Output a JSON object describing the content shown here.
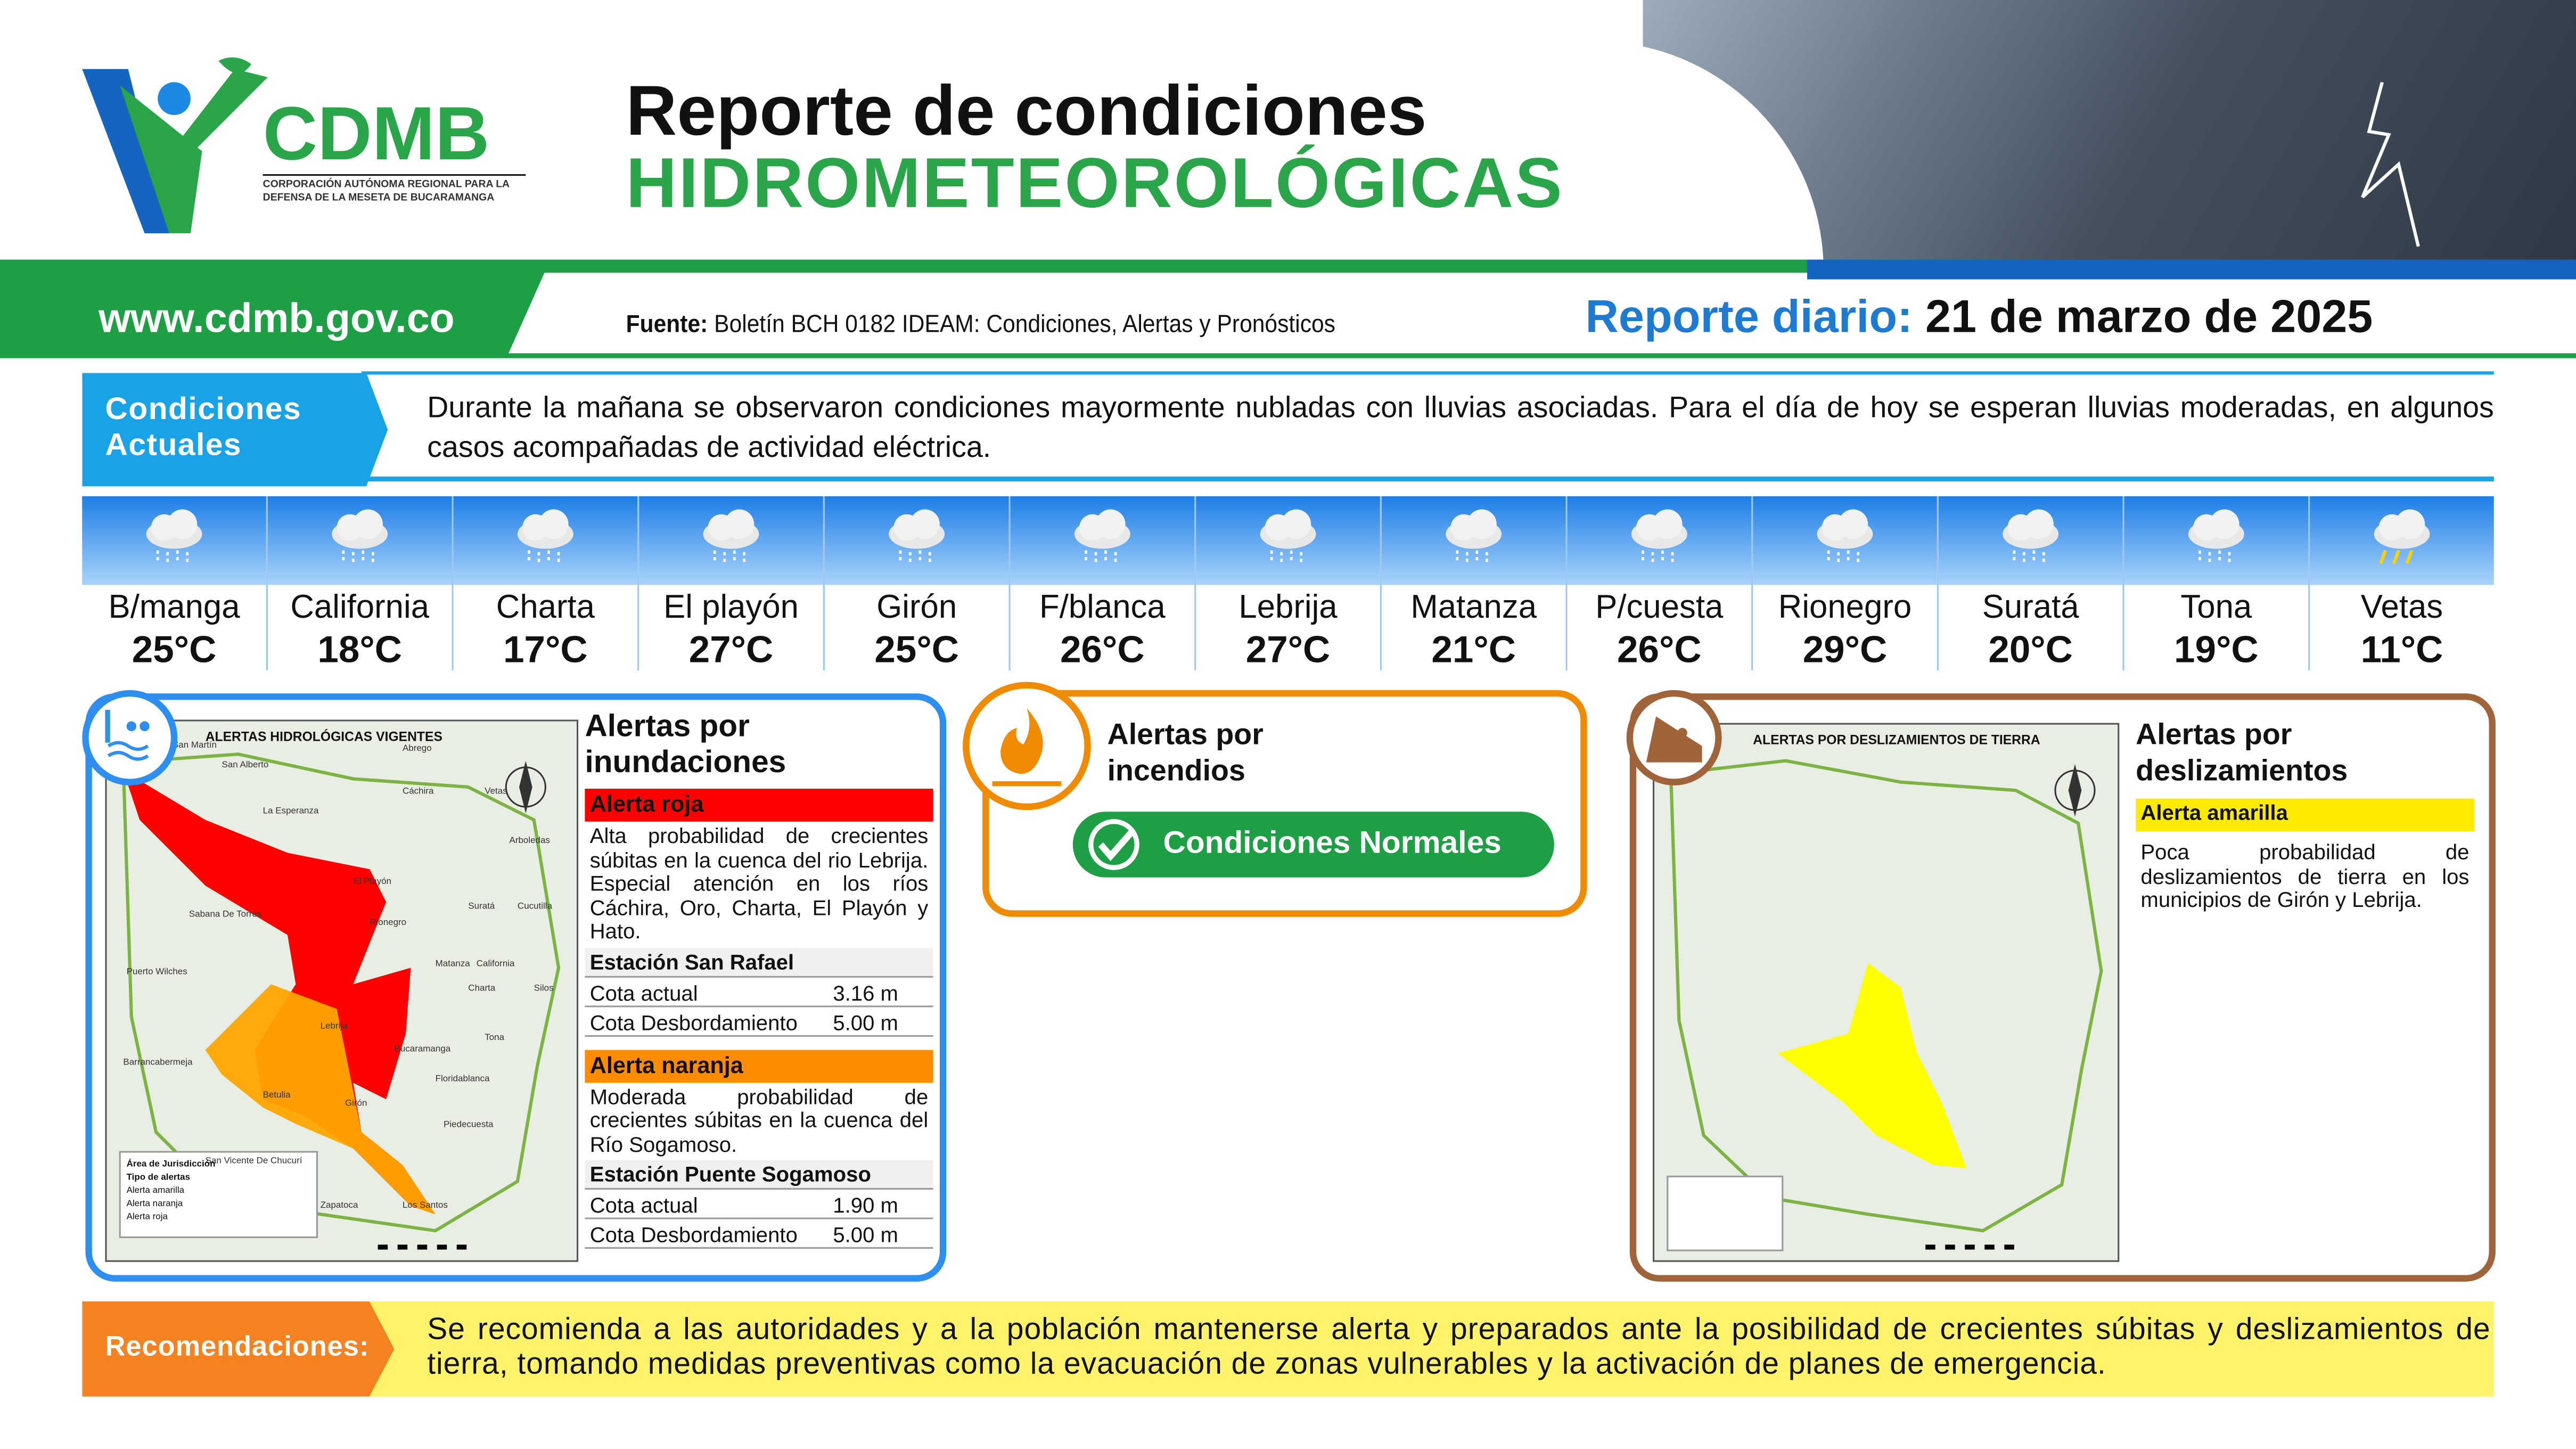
{
  "header": {
    "logo_text": "CDMB",
    "logo_subtitle_1": "CORPORACIÓN AUTÓNOMA REGIONAL PARA LA",
    "logo_subtitle_2": "DEFENSA DE LA MESETA DE BUCARAMANGA",
    "title_line1": "Reporte de condiciones",
    "title_line2": "HIDROMETEOROLÓGICAS",
    "url": "www.cdmb.gov.co",
    "source_label": "Fuente:",
    "source_text": " Boletín BCH 0182 IDEAM: Condiciones, Alertas y Pronósticos",
    "report_label": "Reporte diario:",
    "report_date": " 21 de marzo de 2025"
  },
  "conditions": {
    "label_line1": "Condiciones",
    "label_line2": "Actuales",
    "text": "Durante la mañana se observaron condiciones mayormente nubladas con lluvias asociadas. Para el día de hoy se esperan lluvias moderadas, en algunos casos acompañadas de actividad eléctrica."
  },
  "weather": [
    {
      "name": "B/manga",
      "temp": "25°C",
      "icon": "rain-cloud-icon"
    },
    {
      "name": "California",
      "temp": "18°C",
      "icon": "rain-cloud-icon"
    },
    {
      "name": "Charta",
      "temp": "17°C",
      "icon": "rain-cloud-icon"
    },
    {
      "name": "El playón",
      "temp": "27°C",
      "icon": "rain-cloud-icon"
    },
    {
      "name": "Girón",
      "temp": "25°C",
      "icon": "rain-cloud-icon"
    },
    {
      "name": "F/blanca",
      "temp": "26°C",
      "icon": "rain-cloud-icon"
    },
    {
      "name": "Lebrija",
      "temp": "27°C",
      "icon": "rain-cloud-icon"
    },
    {
      "name": "Matanza",
      "temp": "21°C",
      "icon": "rain-cloud-icon"
    },
    {
      "name": "P/cuesta",
      "temp": "26°C",
      "icon": "rain-cloud-icon"
    },
    {
      "name": "Rionegro",
      "temp": "29°C",
      "icon": "rain-cloud-icon"
    },
    {
      "name": "Suratá",
      "temp": "20°C",
      "icon": "rain-cloud-icon"
    },
    {
      "name": "Tona",
      "temp": "19°C",
      "icon": "rain-cloud-icon"
    },
    {
      "name": "Vetas",
      "temp": "11°C",
      "icon": "thunderstorm-icon"
    }
  ],
  "floods": {
    "title_line1": "Alertas por",
    "title_line2": "inundaciones",
    "map_title": "ALERTAS HIDROLÓGICAS VIGENTES",
    "map_places": [
      "San Martín",
      "San Alberto",
      "Abrego",
      "La Esperanza",
      "Cáchira",
      "El Playón",
      "Rionegro",
      "Sabana De Torres",
      "Puerto Wilches",
      "Suratá",
      "Matanza",
      "California",
      "Charta",
      "Lebrija",
      "Bucaramanga",
      "Tona",
      "Barrancabermeja",
      "Betulia",
      "Girón",
      "Floridablanca",
      "Piedecuesta",
      "Zapatoca",
      "Los Santos",
      "San Vicente De Chucurí",
      "Vetas",
      "Arboledas",
      "Cucutilla",
      "Silos"
    ],
    "map_legend": [
      "Área de Jurisdicción",
      "Tipo de alertas",
      "Alerta amarilla",
      "Alerta naranja",
      "Alerta roja"
    ],
    "red": {
      "label": "Alerta roja",
      "color": "#ff0000",
      "text": "Alta probabilidad de crecientes súbitas en la cuenca del rio Lebrija. Especial atención en los ríos Cáchira, Oro, Charta, El Playón y Hato.",
      "station": "Estación San Rafael",
      "rows": [
        {
          "label": "Cota actual",
          "value": "3.16 m"
        },
        {
          "label": "Cota Desbordamiento",
          "value": "5.00 m"
        }
      ]
    },
    "orange": {
      "label": "Alerta naranja",
      "color": "#ff8c00",
      "text": "Moderada probabilidad de crecientes súbitas en la cuenca del Río Sogamoso.",
      "station": "Estación Puente Sogamoso",
      "rows": [
        {
          "label": "Cota actual",
          "value": "1.90 m"
        },
        {
          "label": "Cota Desbordamiento",
          "value": "5.00 m"
        }
      ]
    }
  },
  "fires": {
    "title_line1": "Alertas por",
    "title_line2": "incendios",
    "status": "Condiciones Normales"
  },
  "landslides": {
    "title_line1": "Alertas por",
    "title_line2": "deslizamientos",
    "map_title": "ALERTAS POR DESLIZAMIENTOS DE TIERRA",
    "yellow": {
      "label": "Alerta amarilla",
      "color": "#ffeb00",
      "text": "Poca probabilidad de deslizamientos de tierra en los municipios de Girón y Lebrija."
    }
  },
  "recommendations": {
    "label": "Recomendaciones:",
    "text": "Se recomienda a las autoridades y a la población mantenerse alerta y preparados ante la posibilidad de crecientes súbitas y deslizamientos de tierra, tomando medidas preventivas como la evacuación de zonas vulnerables y la activación de planes de emergencia."
  }
}
